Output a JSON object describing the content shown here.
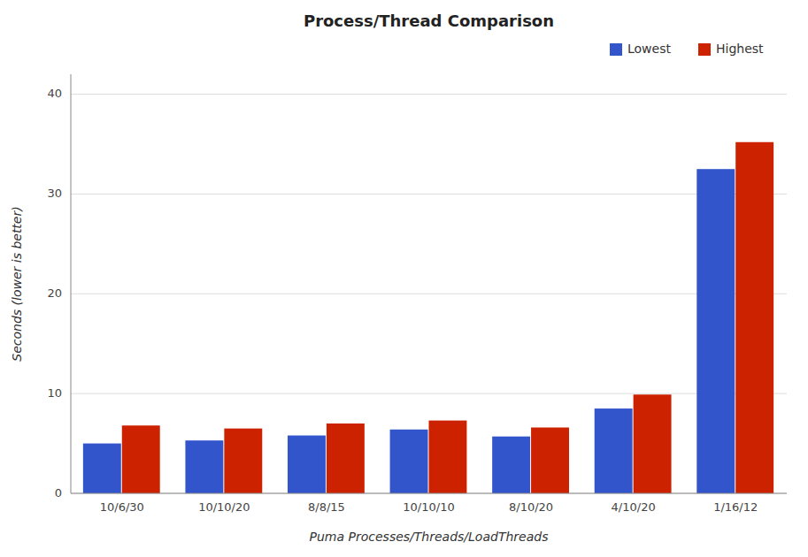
{
  "chart_data": {
    "type": "bar",
    "title": "Process/Thread Comparison",
    "xlabel": "Puma Processes/Threads/LoadThreads",
    "ylabel": "Seconds (lower is better)",
    "categories": [
      "10/6/30",
      "10/10/20",
      "8/8/15",
      "10/10/10",
      "8/10/20",
      "4/10/20",
      "1/16/12"
    ],
    "series": [
      {
        "name": "Lowest",
        "color": "#3355cc",
        "values": [
          5.0,
          5.3,
          5.8,
          6.4,
          5.7,
          8.5,
          32.5
        ]
      },
      {
        "name": "Highest",
        "color": "#cc2200",
        "values": [
          6.8,
          6.5,
          7.0,
          7.3,
          6.6,
          9.9,
          35.2
        ]
      }
    ],
    "ylim": [
      0,
      42
    ],
    "yticks": [
      0,
      10,
      20,
      30,
      40
    ],
    "grid": true,
    "legend": "upper right"
  }
}
